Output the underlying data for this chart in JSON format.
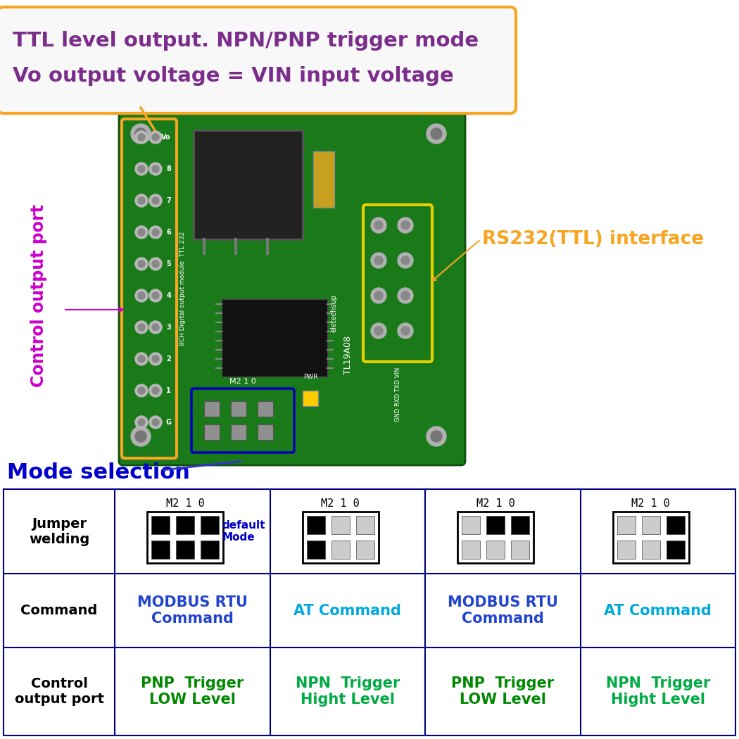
{
  "bg_color": "#ffffff",
  "title_box_text1": "TTL level output. NPN/PNP trigger mode",
  "title_box_text2": "Vo output voltage = VIN input voltage",
  "title_box_color": "#f5a623",
  "title_text_color": "#7b2d8b",
  "control_port_text": "Control output port",
  "control_port_color": "#cc00cc",
  "rs232_text": "RS232(TTL) interface",
  "rs232_color": "#f5a623",
  "mode_sel_text": "Mode selection",
  "mode_sel_color": "#0000cc",
  "table_header_color": "#000000",
  "modbus_color": "#2244cc",
  "at_color": "#00aadd",
  "pnp_color": "#008800",
  "npn_color": "#00aa44",
  "table_border_color": "#000080",
  "col1_command": "MODBUS RTU\nCommand",
  "col2_command": "AT Command",
  "col3_command": "MODBUS RTU\nCommand",
  "col4_command": "AT Command",
  "col1_control": "PNP  Trigger\nLOW Level",
  "col2_control": "NPN  Trigger\nHight Level",
  "col3_control": "PNP  Trigger\nLOW Level",
  "col4_control": "NPN  Trigger\nHight Level",
  "default_mode_text": "default\nMode",
  "default_mode_color": "#0000cc",
  "jumper_patterns": [
    [
      1,
      1,
      1,
      1,
      1,
      1
    ],
    [
      1,
      0,
      0,
      1,
      0,
      0
    ],
    [
      0,
      1,
      1,
      0,
      0,
      0
    ],
    [
      0,
      0,
      1,
      0,
      0,
      1
    ]
  ],
  "pcb_color": "#1a7a1a",
  "pcb_edge_color": "#105010"
}
